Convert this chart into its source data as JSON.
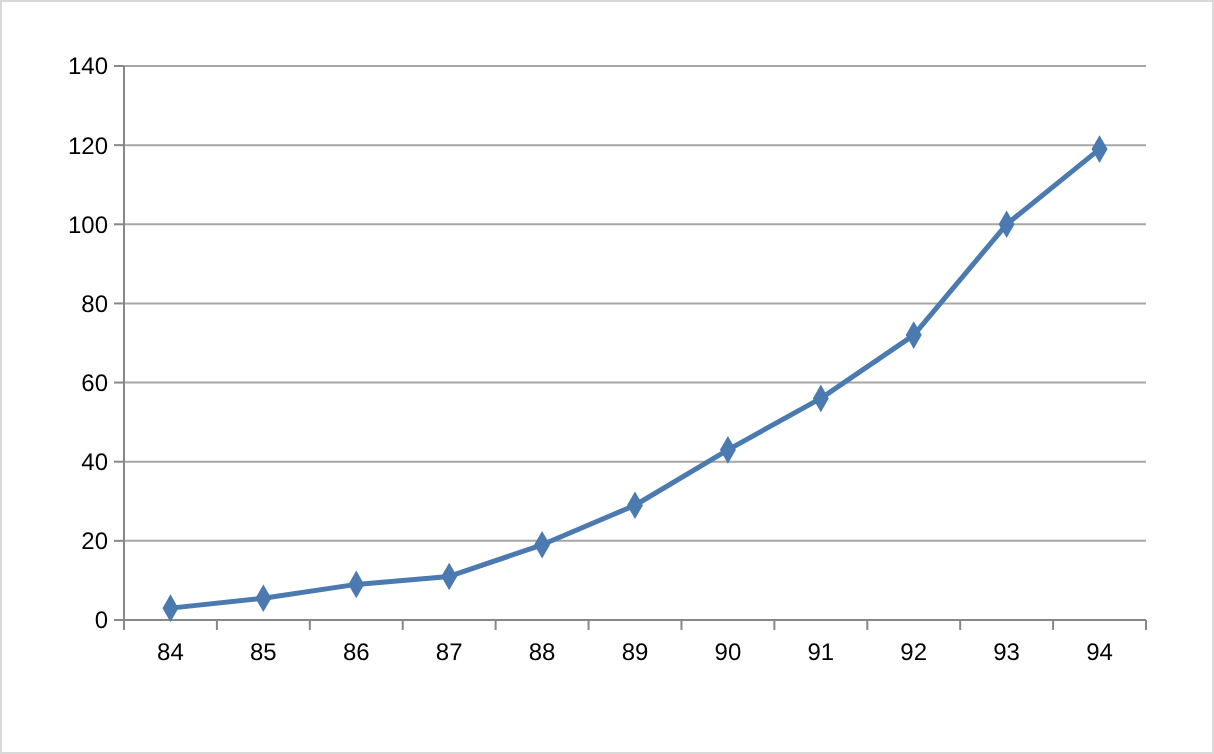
{
  "chart_data": {
    "type": "line",
    "categories": [
      "84",
      "85",
      "86",
      "87",
      "88",
      "89",
      "90",
      "91",
      "92",
      "93",
      "94"
    ],
    "series": [
      {
        "color": "#4a7ab0",
        "values": [
          3,
          5.5,
          9,
          11,
          19,
          29,
          43,
          56,
          72,
          100,
          119
        ]
      }
    ],
    "ylim": [
      0,
      140
    ],
    "yticks": [
      0,
      20,
      40,
      60,
      80,
      100,
      120,
      140
    ],
    "grid": "y",
    "marker": "diamond",
    "line_style": "solid"
  }
}
